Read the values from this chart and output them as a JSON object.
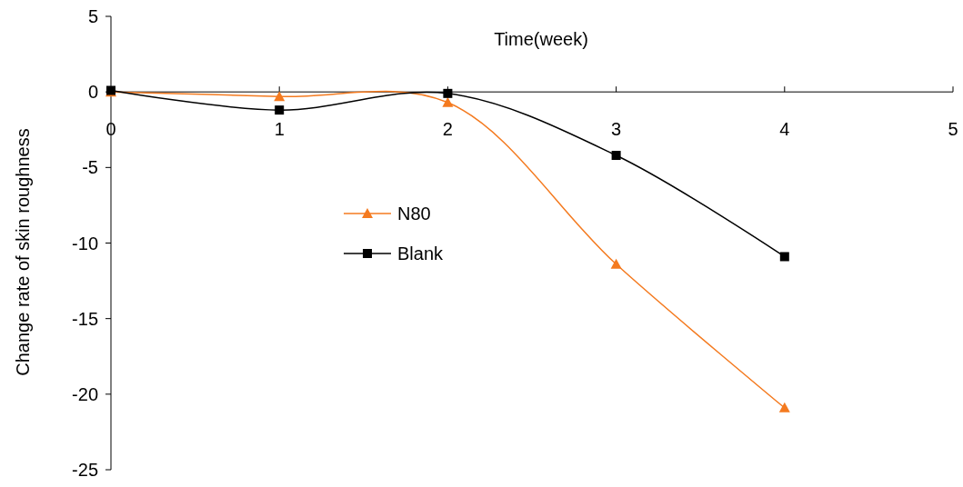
{
  "chart_data": {
    "type": "line",
    "xlabel": "Time(week)",
    "ylabel": "Change rate of skin roughness",
    "x": [
      0,
      1,
      2,
      3,
      4
    ],
    "xlim": [
      0,
      5
    ],
    "xticks": [
      0,
      1,
      2,
      3,
      4,
      5
    ],
    "ylim": [
      -25,
      5
    ],
    "yticks": [
      -25,
      -20,
      -15,
      -10,
      -5,
      0,
      5
    ],
    "grid": false,
    "legend": "left",
    "series": [
      {
        "name": "N80",
        "color": "#f47a1f",
        "marker": "triangle",
        "values": [
          0,
          -0.3,
          -0.7,
          -11.4,
          -20.9
        ]
      },
      {
        "name": "Blank",
        "color": "#000000",
        "marker": "square",
        "values": [
          0.1,
          -1.2,
          -0.1,
          -4.2,
          -10.9
        ]
      }
    ]
  }
}
